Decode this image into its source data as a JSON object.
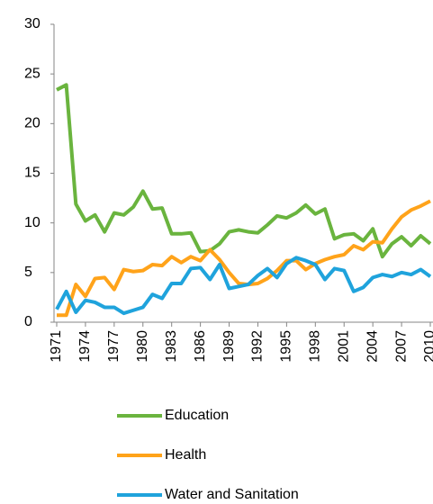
{
  "chart_data": {
    "type": "line",
    "x": [
      1971,
      1972,
      1973,
      1974,
      1975,
      1976,
      1977,
      1978,
      1979,
      1980,
      1981,
      1982,
      1983,
      1984,
      1985,
      1986,
      1987,
      1988,
      1989,
      1990,
      1991,
      1992,
      1993,
      1994,
      1995,
      1996,
      1997,
      1998,
      1999,
      2000,
      2001,
      2002,
      2003,
      2004,
      2005,
      2006,
      2007,
      2008,
      2009,
      2010
    ],
    "xlim": [
      1971,
      2010
    ],
    "xticks": [
      1971,
      1974,
      1977,
      1980,
      1983,
      1986,
      1989,
      1992,
      1995,
      1998,
      2001,
      2004,
      2007,
      2010
    ],
    "ylim": [
      0,
      30
    ],
    "yticks": [
      0,
      5,
      10,
      15,
      20,
      25,
      30
    ],
    "grid": false,
    "legend": "bottom",
    "series": [
      {
        "name": "Education",
        "color": "#6ab43e",
        "values": [
          23.4,
          23.9,
          11.9,
          10.2,
          10.8,
          9.1,
          11.0,
          10.8,
          11.6,
          13.2,
          11.4,
          11.5,
          8.9,
          8.9,
          9.0,
          7.1,
          7.2,
          7.9,
          9.1,
          9.3,
          9.1,
          9.0,
          9.8,
          10.7,
          10.5,
          11.0,
          11.8,
          10.9,
          11.4,
          8.4,
          8.8,
          8.9,
          8.2,
          9.4,
          6.6,
          7.9,
          8.6,
          7.7,
          8.7,
          7.9
        ]
      },
      {
        "name": "Health",
        "color": "#ffa31a",
        "values": [
          0.7,
          0.7,
          3.8,
          2.6,
          4.4,
          4.5,
          3.3,
          5.3,
          5.1,
          5.2,
          5.8,
          5.7,
          6.6,
          6.0,
          6.6,
          6.2,
          7.3,
          6.3,
          5.0,
          3.9,
          3.8,
          3.9,
          4.4,
          5.2,
          6.2,
          6.2,
          5.3,
          5.9,
          6.3,
          6.6,
          6.8,
          7.7,
          7.3,
          8.1,
          8.0,
          9.4,
          10.6,
          11.3,
          11.7,
          12.2
        ]
      },
      {
        "name": "Water and Sanitation",
        "color": "#1fa3dc",
        "values": [
          1.3,
          3.1,
          1.0,
          2.2,
          2.0,
          1.5,
          1.5,
          0.9,
          1.2,
          1.5,
          2.8,
          2.4,
          3.9,
          3.9,
          5.4,
          5.5,
          4.3,
          5.8,
          3.4,
          3.6,
          3.8,
          4.7,
          5.4,
          4.5,
          5.9,
          6.5,
          6.2,
          5.8,
          4.3,
          5.4,
          5.2,
          3.1,
          3.5,
          4.5,
          4.8,
          4.6,
          5.0,
          4.8,
          5.3,
          4.6
        ]
      }
    ]
  }
}
